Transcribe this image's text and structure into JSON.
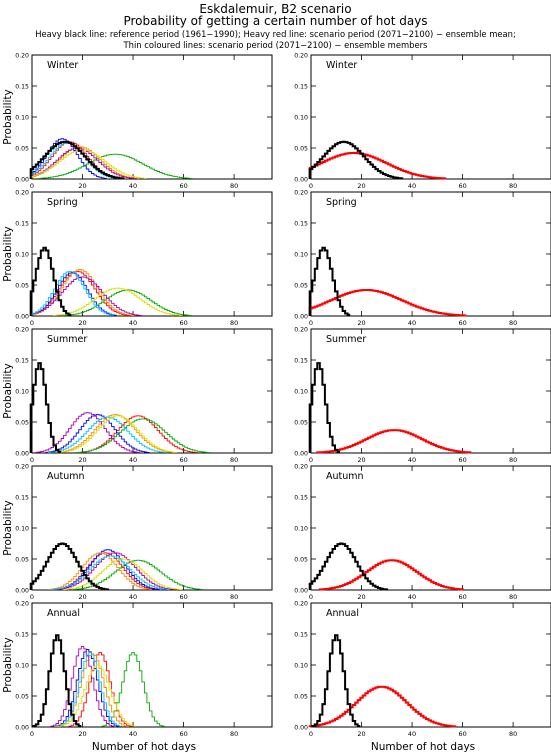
{
  "header": {
    "line1": "Eskdalemuir, B2 scenario",
    "line2": "Probability of getting a certain number of hot days",
    "line3": "Heavy black line: reference period (1961−1990); Heavy red line: scenario period (2071−2100) − ensemble mean;",
    "line4": "Thin coloured lines: scenario period (2071−2100) − ensemble members"
  },
  "axes": {
    "ylabel": "Probability",
    "xlabel": "Number of hot days",
    "xticks": [
      "0",
      "20",
      "40",
      "60",
      "80"
    ],
    "yticks": [
      "0.00",
      "0.05",
      "0.10",
      "0.15",
      "0.20"
    ]
  },
  "colors": {
    "reference": "#000000",
    "scenario_mean": "#ff0000",
    "members": [
      "#ff0000",
      "#0000ff",
      "#00aa00",
      "#ff8c00",
      "#b000b0",
      "#00c0ff",
      "#dddd00"
    ]
  },
  "chart_data": [
    {
      "type": "line",
      "season": "Winter",
      "column": "left",
      "xlim": [
        0,
        95
      ],
      "ylim": [
        0,
        0.2
      ],
      "reference": {
        "mean": 13,
        "sd": 8,
        "peak": 0.06
      },
      "members": [
        {
          "mean": 15,
          "sd": 7,
          "peak": 0.06
        },
        {
          "mean": 12,
          "sd": 6,
          "peak": 0.065
        },
        {
          "mean": 33,
          "sd": 11,
          "peak": 0.04
        },
        {
          "mean": 19,
          "sd": 8,
          "peak": 0.052
        },
        {
          "mean": 18,
          "sd": 8,
          "peak": 0.05
        },
        {
          "mean": 14,
          "sd": 7,
          "peak": 0.058
        },
        {
          "mean": 20,
          "sd": 9,
          "peak": 0.047
        }
      ]
    },
    {
      "type": "line",
      "season": "Winter",
      "column": "right",
      "xlim": [
        0,
        95
      ],
      "ylim": [
        0,
        0.2
      ],
      "reference": {
        "mean": 13,
        "sd": 8,
        "peak": 0.06
      },
      "scenario_mean": {
        "mean": 17,
        "sd": 13,
        "peak": 0.042
      }
    },
    {
      "type": "line",
      "season": "Spring",
      "column": "left",
      "xlim": [
        0,
        95
      ],
      "ylim": [
        0,
        0.2
      ],
      "reference": {
        "mean": 5,
        "sd": 3.5,
        "peak": 0.11
      },
      "members": [
        {
          "mean": 18,
          "sd": 7,
          "peak": 0.072
        },
        {
          "mean": 16,
          "sd": 6,
          "peak": 0.07
        },
        {
          "mean": 38,
          "sd": 9,
          "peak": 0.042
        },
        {
          "mean": 19,
          "sd": 7,
          "peak": 0.075
        },
        {
          "mean": 20,
          "sd": 8,
          "peak": 0.063
        },
        {
          "mean": 15,
          "sd": 6,
          "peak": 0.072
        },
        {
          "mean": 34,
          "sd": 9,
          "peak": 0.045
        }
      ]
    },
    {
      "type": "line",
      "season": "Spring",
      "column": "right",
      "xlim": [
        0,
        95
      ],
      "ylim": [
        0,
        0.2
      ],
      "reference": {
        "mean": 5,
        "sd": 3.5,
        "peak": 0.11
      },
      "scenario_mean": {
        "mean": 22,
        "sd": 14,
        "peak": 0.042
      }
    },
    {
      "type": "line",
      "season": "Summer",
      "column": "left",
      "xlim": [
        0,
        95
      ],
      "ylim": [
        0,
        0.2
      ],
      "reference": {
        "mean": 3,
        "sd": 2.7,
        "peak": 0.145
      },
      "members": [
        {
          "mean": 42,
          "sd": 8,
          "peak": 0.06
        },
        {
          "mean": 26,
          "sd": 7,
          "peak": 0.062
        },
        {
          "mean": 44,
          "sd": 9,
          "peak": 0.055
        },
        {
          "mean": 33,
          "sd": 8,
          "peak": 0.062
        },
        {
          "mean": 22,
          "sd": 7,
          "peak": 0.065
        },
        {
          "mean": 30,
          "sd": 8,
          "peak": 0.058
        },
        {
          "mean": 34,
          "sd": 8,
          "peak": 0.06
        }
      ]
    },
    {
      "type": "line",
      "season": "Summer",
      "column": "right",
      "xlim": [
        0,
        95
      ],
      "ylim": [
        0,
        0.2
      ],
      "reference": {
        "mean": 3,
        "sd": 2.7,
        "peak": 0.145
      },
      "scenario_mean": {
        "mean": 33,
        "sd": 11,
        "peak": 0.037
      }
    },
    {
      "type": "line",
      "season": "Autumn",
      "column": "left",
      "xlim": [
        0,
        95
      ],
      "ylim": [
        0,
        0.2
      ],
      "reference": {
        "mean": 12,
        "sd": 6,
        "peak": 0.075
      },
      "members": [
        {
          "mean": 29,
          "sd": 7,
          "peak": 0.06
        },
        {
          "mean": 30,
          "sd": 7,
          "peak": 0.065
        },
        {
          "mean": 42,
          "sd": 9,
          "peak": 0.048
        },
        {
          "mean": 27,
          "sd": 7,
          "peak": 0.06
        },
        {
          "mean": 33,
          "sd": 8,
          "peak": 0.06
        },
        {
          "mean": 31,
          "sd": 8,
          "peak": 0.055
        },
        {
          "mean": 36,
          "sd": 8,
          "peak": 0.05
        }
      ]
    },
    {
      "type": "line",
      "season": "Autumn",
      "column": "right",
      "xlim": [
        0,
        95
      ],
      "ylim": [
        0,
        0.2
      ],
      "reference": {
        "mean": 12,
        "sd": 6,
        "peak": 0.075
      },
      "scenario_mean": {
        "mean": 32,
        "sd": 10,
        "peak": 0.048
      }
    },
    {
      "type": "line",
      "season": "Annual",
      "column": "left",
      "xlim": [
        0,
        95
      ],
      "ylim": [
        0,
        0.2
      ],
      "reference": {
        "mean": 10,
        "sd": 3,
        "peak": 0.148
      },
      "members": [
        {
          "mean": 27,
          "sd": 4,
          "peak": 0.12
        },
        {
          "mean": 22,
          "sd": 4,
          "peak": 0.125
        },
        {
          "mean": 40,
          "sd": 4,
          "peak": 0.12
        },
        {
          "mean": 24,
          "sd": 4.5,
          "peak": 0.118
        },
        {
          "mean": 20,
          "sd": 4,
          "peak": 0.13
        },
        {
          "mean": 23,
          "sd": 4,
          "peak": 0.12
        },
        {
          "mean": 26,
          "sd": 5,
          "peak": 0.1
        }
      ]
    },
    {
      "type": "line",
      "season": "Annual",
      "column": "right",
      "xlim": [
        0,
        95
      ],
      "ylim": [
        0,
        0.2
      ],
      "reference": {
        "mean": 10,
        "sd": 3,
        "peak": 0.148
      },
      "scenario_mean": {
        "mean": 28,
        "sd": 10,
        "peak": 0.065
      }
    }
  ]
}
